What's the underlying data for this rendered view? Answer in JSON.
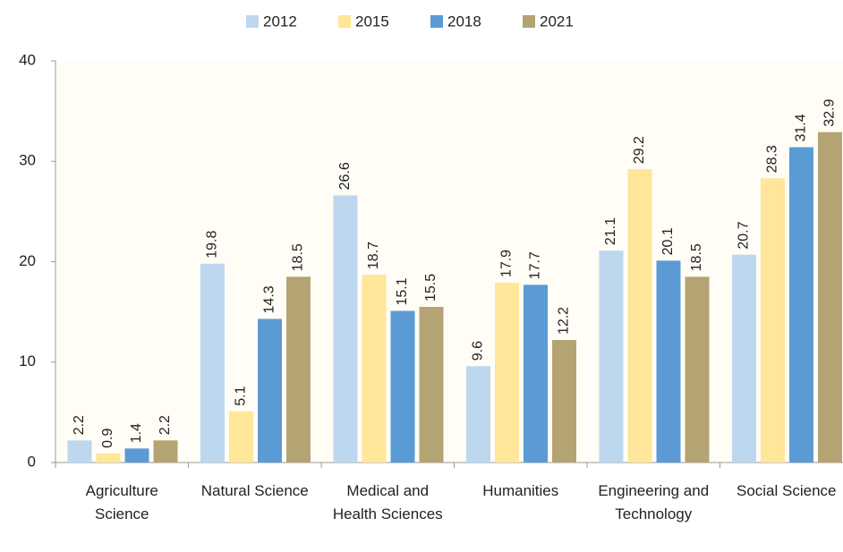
{
  "chart_data": {
    "type": "bar",
    "categories": [
      "Agriculture Science",
      "Natural Science",
      "Medical and Health Sciences",
      "Humanities",
      "Engineering and Technology",
      "Social Science"
    ],
    "series": [
      {
        "name": "2012",
        "color": "#bdd7ee",
        "values": [
          2.2,
          19.8,
          26.6,
          9.6,
          21.1,
          20.7
        ]
      },
      {
        "name": "2015",
        "color": "#ffe699",
        "values": [
          0.9,
          5.1,
          18.7,
          17.9,
          29.2,
          28.3
        ]
      },
      {
        "name": "2018",
        "color": "#5b9bd5",
        "values": [
          1.4,
          14.3,
          15.1,
          17.7,
          20.1,
          31.4
        ]
      },
      {
        "name": "2021",
        "color": "#b4a474",
        "values": [
          2.2,
          18.5,
          15.5,
          12.2,
          18.5,
          32.9
        ]
      }
    ],
    "ylim": [
      0,
      40
    ],
    "yticks": [
      0,
      10,
      20,
      30,
      40
    ],
    "legend": "top"
  }
}
